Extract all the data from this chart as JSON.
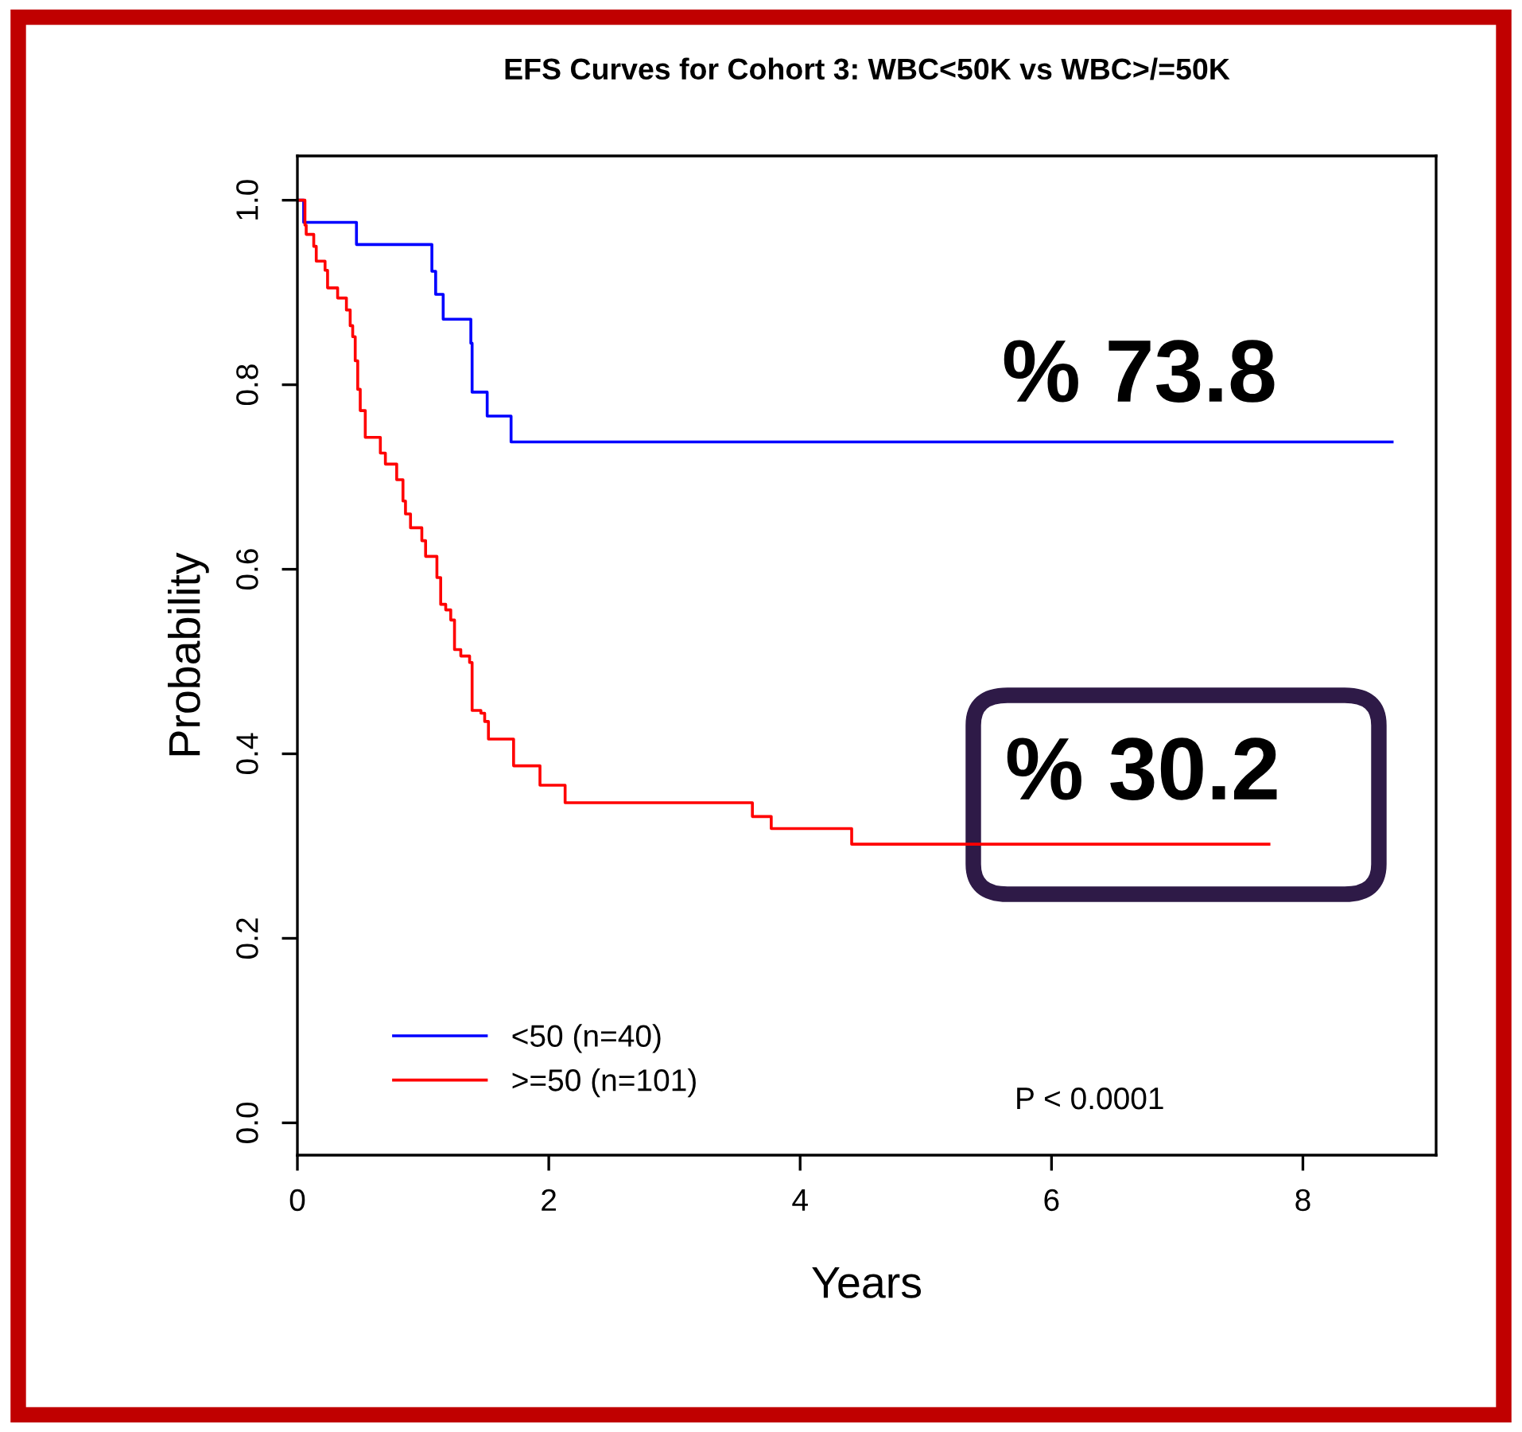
{
  "chart_data": {
    "type": "step",
    "title": "EFS Curves for Cohort 3: WBC<50K vs WBC>/=50K",
    "xlabel": "Years",
    "ylabel": "Probability",
    "xlim": [
      0,
      9.06
    ],
    "ylim": [
      -0.035,
      1.048
    ],
    "xticks": [
      0,
      2,
      4,
      6,
      8
    ],
    "yticks": [
      {
        "value": 0,
        "label": "0.0"
      },
      {
        "value": 0.2,
        "label": "0.2"
      },
      {
        "value": 0.4,
        "label": "0.4"
      },
      {
        "value": 0.6,
        "label": "0.6"
      },
      {
        "value": 0.8,
        "label": "0.8"
      },
      {
        "value": 1,
        "label": "1.0"
      }
    ],
    "grid": false,
    "legend": "bottom left",
    "line_style": "solid",
    "marker": "none",
    "series": [
      {
        "name": "<50 (n=40)",
        "color": "#0000ff",
        "x": [
          0,
          0.05,
          0.47,
          1.07,
          1.1,
          1.16,
          1.38,
          1.39,
          1.51,
          1.7,
          8.71
        ],
        "values": [
          1.0,
          0.976,
          0.952,
          0.923,
          0.898,
          0.871,
          0.845,
          0.792,
          0.766,
          0.738,
          0.738
        ]
      },
      {
        "name": ">=50 (n=101)",
        "color": "#ff0000",
        "x": [
          0,
          0.06,
          0.07,
          0.13,
          0.15,
          0.22,
          0.24,
          0.32,
          0.39,
          0.42,
          0.44,
          0.46,
          0.48,
          0.5,
          0.54,
          0.66,
          0.7,
          0.79,
          0.84,
          0.86,
          0.9,
          0.99,
          1.02,
          1.11,
          1.14,
          1.18,
          1.22,
          1.25,
          1.3,
          1.37,
          1.39,
          1.46,
          1.49,
          1.52,
          1.72,
          1.93,
          2.13,
          3.62,
          3.77,
          4.41,
          7.73
        ],
        "values": [
          1.0,
          0.973,
          0.963,
          0.95,
          0.934,
          0.924,
          0.905,
          0.894,
          0.881,
          0.864,
          0.852,
          0.826,
          0.795,
          0.772,
          0.743,
          0.726,
          0.714,
          0.697,
          0.674,
          0.66,
          0.645,
          0.631,
          0.614,
          0.591,
          0.562,
          0.556,
          0.545,
          0.513,
          0.506,
          0.499,
          0.447,
          0.444,
          0.435,
          0.416,
          0.387,
          0.366,
          0.347,
          0.332,
          0.319,
          0.302,
          0.302
        ]
      }
    ],
    "annotations": [
      "% 73.8",
      "% 30.2",
      "P < 0.0001"
    ]
  }
}
